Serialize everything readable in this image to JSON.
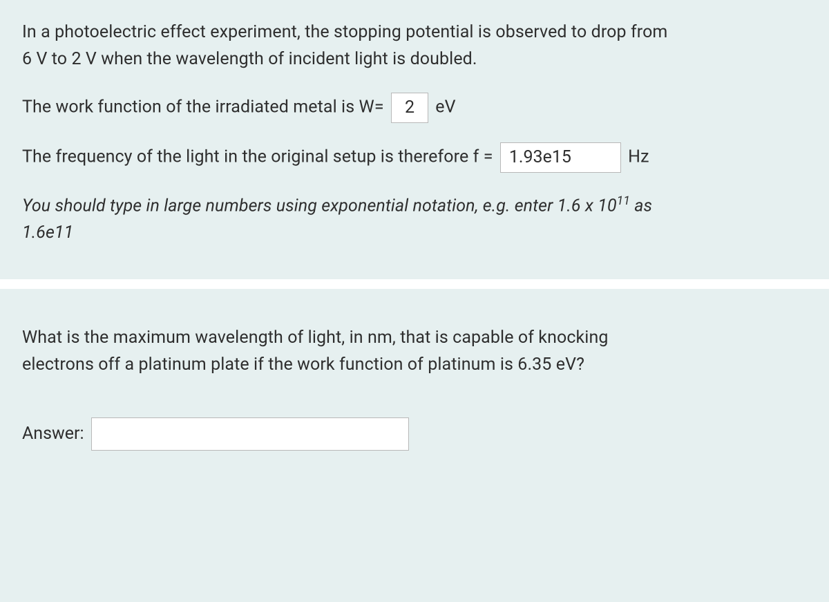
{
  "q1": {
    "intro_line1": "In a photoelectric effect experiment, the stopping potential is observed to drop from",
    "intro_line2": "6 V to 2 V when the wavelength of incident light is doubled.",
    "work_fn_prefix": "The work function of the irradiated metal is W=",
    "work_fn_value": "2",
    "work_fn_unit": "eV",
    "freq_prefix": "The frequency of the light in the original setup is therefore f =",
    "freq_value": "1.93e15",
    "freq_unit": "Hz",
    "hint_prefix": "You should type in large numbers using exponential notation, e.g. enter 1.6 x 10",
    "hint_exp": "11",
    "hint_suffix": " as",
    "hint_line2": "1.6e11"
  },
  "q2": {
    "text_line1": "What is the maximum wavelength of light, in nm, that is capable of knocking",
    "text_line2": "electrons off a platinum plate if the work function of platinum is 6.35 eV?",
    "answer_label": "Answer:",
    "answer_value": ""
  },
  "colors": {
    "background": "#e6f0f0",
    "divider": "#ffffff",
    "text": "#2e2e2e",
    "input_border": "#b8b8b8",
    "input_bg": "#ffffff"
  }
}
